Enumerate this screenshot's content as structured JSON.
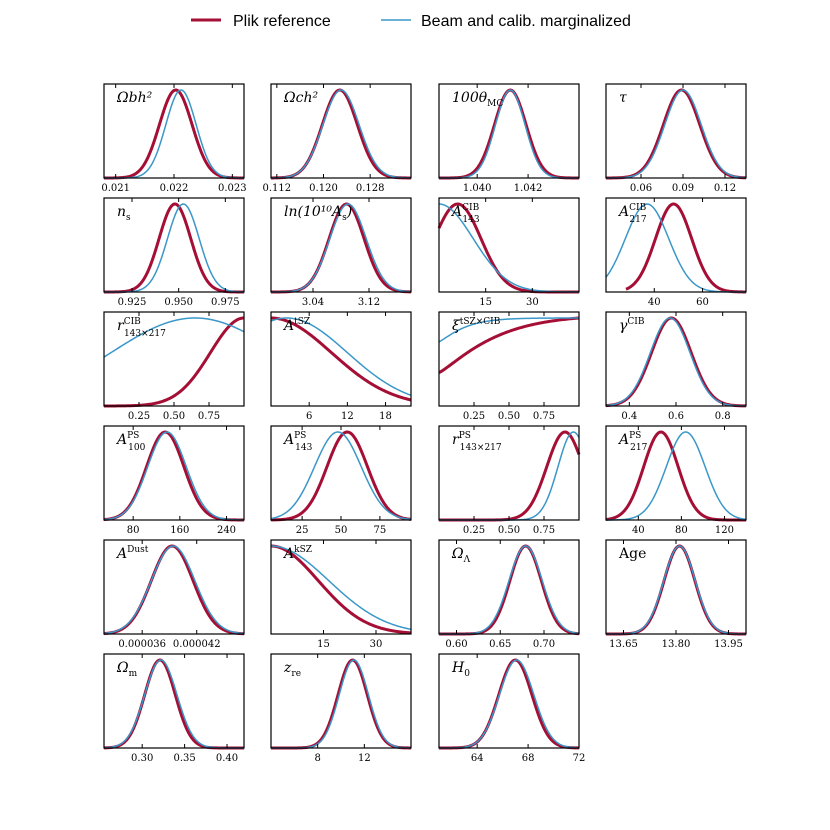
{
  "legend": {
    "items": [
      {
        "label": "Plik reference",
        "color": "#a50f35"
      },
      {
        "label": "Beam and calib. marginalized",
        "color": "#3a97c9"
      }
    ]
  },
  "chart_data": {
    "type": "line",
    "grid": false,
    "legend_position": "top-center",
    "series_names": [
      "Plik reference",
      "Beam and calib. marginalized"
    ],
    "panels": [
      {
        "id": "omegab",
        "label": {
          "main": "Ωbh²",
          "sub": "",
          "sup": ""
        },
        "xlim": [
          0.0208,
          0.0232
        ],
        "ticks": [
          "0.021",
          "0.022",
          "0.023"
        ],
        "tick_values": [
          0.021,
          0.022,
          0.023
        ],
        "curves": [
          {
            "type": "gauss",
            "mu": 0.02203,
            "sigma": 0.00028
          },
          {
            "type": "gauss",
            "mu": 0.02212,
            "sigma": 0.00026
          }
        ]
      },
      {
        "id": "omegac",
        "label": {
          "main": "Ωch²",
          "sub": "",
          "sup": ""
        },
        "xlim": [
          0.111,
          0.135
        ],
        "ticks": [
          "0.112",
          "0.120",
          "0.128"
        ],
        "tick_values": [
          0.112,
          0.12,
          0.128
        ],
        "curves": [
          {
            "type": "gauss",
            "mu": 0.1228,
            "sigma": 0.003
          },
          {
            "type": "gauss",
            "mu": 0.123,
            "sigma": 0.0031
          }
        ]
      },
      {
        "id": "theta",
        "label": {
          "main": "100θ",
          "sub": "MC",
          "sup": ""
        },
        "xlim": [
          1.0385,
          1.044
        ],
        "ticks": [
          "1.040",
          "1.042"
        ],
        "tick_values": [
          1.04,
          1.042
        ],
        "curves": [
          {
            "type": "gauss",
            "mu": 1.0413,
            "sigma": 0.00062
          },
          {
            "type": "gauss",
            "mu": 1.0413,
            "sigma": 0.00058
          }
        ]
      },
      {
        "id": "tau",
        "label": {
          "main": "τ",
          "sub": "",
          "sup": ""
        },
        "xlim": [
          0.035,
          0.135
        ],
        "ticks": [
          "0.06",
          "0.09",
          "0.12"
        ],
        "tick_values": [
          0.06,
          0.09,
          0.12
        ],
        "curves": [
          {
            "type": "gauss",
            "mu": 0.089,
            "sigma": 0.013
          },
          {
            "type": "gauss",
            "mu": 0.09,
            "sigma": 0.013
          }
        ]
      },
      {
        "id": "ns",
        "label": {
          "main": "n",
          "sub": "s",
          "sup": ""
        },
        "xlim": [
          0.91,
          0.985
        ],
        "ticks": [
          "0.925",
          "0.950",
          "0.975"
        ],
        "tick_values": [
          0.925,
          0.95,
          0.975
        ],
        "curves": [
          {
            "type": "gauss",
            "mu": 0.948,
            "sigma": 0.0085
          },
          {
            "type": "gauss",
            "mu": 0.9525,
            "sigma": 0.0085
          }
        ]
      },
      {
        "id": "logA",
        "label": {
          "main": "ln(10¹⁰A",
          "sub": "s",
          "sup": "",
          "tail": ")"
        },
        "xlim": [
          2.98,
          3.18
        ],
        "ticks": [
          "3.04",
          "3.12"
        ],
        "tick_values": [
          3.04,
          3.12
        ],
        "curves": [
          {
            "type": "gauss",
            "mu": 3.088,
            "sigma": 0.025
          },
          {
            "type": "gauss",
            "mu": 3.09,
            "sigma": 0.026
          }
        ]
      },
      {
        "id": "acib143",
        "label": {
          "main": "A",
          "sub": "143",
          "sup": "CIB"
        },
        "xlim": [
          0,
          45
        ],
        "ticks": [
          "15",
          "30"
        ],
        "tick_values": [
          15,
          30
        ],
        "curves": [
          {
            "type": "gauss",
            "mu": 6,
            "sigma": 7.5,
            "clip": 0
          },
          {
            "type": "decay",
            "peak": 0,
            "scale": 11
          }
        ]
      },
      {
        "id": "acib217",
        "label": {
          "main": "A",
          "sub": "217",
          "sup": "CIB"
        },
        "xlim": [
          20,
          78
        ],
        "ticks": [
          "40",
          "60"
        ],
        "tick_values": [
          40,
          60
        ],
        "curves": [
          {
            "type": "gauss",
            "mu": 48,
            "sigma": 7.5,
            "clipmin": 28
          },
          {
            "type": "gauss",
            "mu": 37,
            "sigma": 9
          }
        ]
      },
      {
        "id": "rcib",
        "label": {
          "main": "r",
          "sub": "143×217",
          "sup": "CIB"
        },
        "xlim": [
          0.0,
          1.0
        ],
        "ticks": [
          "0.25",
          "0.50",
          "0.75"
        ],
        "tick_values": [
          0.25,
          0.5,
          0.75
        ],
        "curves": [
          {
            "type": "gauss",
            "mu": 1.0,
            "sigma": 0.24
          },
          {
            "type": "skew",
            "mu": 0.65,
            "sl": 0.6,
            "sr": 0.6
          }
        ]
      },
      {
        "id": "atsz",
        "label": {
          "main": "A",
          "sub": "",
          "sup": "tSZ"
        },
        "xlim": [
          0,
          22
        ],
        "ticks": [
          "6",
          "12",
          "18"
        ],
        "tick_values": [
          6,
          12,
          18
        ],
        "curves": [
          {
            "type": "gauss",
            "mu": 0,
            "sigma": 9.5
          },
          {
            "type": "gauss",
            "mu": 2.5,
            "sigma": 9.5
          }
        ]
      },
      {
        "id": "xi",
        "label": {
          "main": "ξ",
          "sub": "",
          "sup": "tSZ×CIB"
        },
        "xlim": [
          0.0,
          1.0
        ],
        "ticks": [
          "0.25",
          "0.50",
          "0.75"
        ],
        "tick_values": [
          0.25,
          0.5,
          0.75
        ],
        "curves": [
          {
            "type": "rise",
            "a": 0.38,
            "b": 0.35
          },
          {
            "type": "rise",
            "a": 0.73,
            "b": 0.14
          }
        ]
      },
      {
        "id": "gammacib",
        "label": {
          "main": "γ",
          "sub": "",
          "sup": "CIB"
        },
        "xlim": [
          0.3,
          0.9
        ],
        "ticks": [
          "0.4",
          "0.6",
          "0.8"
        ],
        "tick_values": [
          0.4,
          0.6,
          0.8
        ],
        "curves": [
          {
            "type": "gauss",
            "mu": 0.58,
            "sigma": 0.085
          },
          {
            "type": "gauss",
            "mu": 0.575,
            "sigma": 0.085
          }
        ]
      },
      {
        "id": "aps100",
        "label": {
          "main": "A",
          "sub": "100",
          "sup": "PS"
        },
        "xlim": [
          30,
          270
        ],
        "ticks": [
          "80",
          "160",
          "240"
        ],
        "tick_values": [
          80,
          160,
          240
        ],
        "curves": [
          {
            "type": "gauss",
            "mu": 135,
            "sigma": 32
          },
          {
            "type": "gauss",
            "mu": 138,
            "sigma": 33
          }
        ]
      },
      {
        "id": "aps143",
        "label": {
          "main": "A",
          "sub": "143",
          "sup": "PS"
        },
        "xlim": [
          5,
          95
        ],
        "ticks": [
          "25",
          "50",
          "75"
        ],
        "tick_values": [
          25,
          50,
          75
        ],
        "curves": [
          {
            "type": "gauss",
            "mu": 54,
            "sigma": 13
          },
          {
            "type": "gauss",
            "mu": 48,
            "sigma": 15
          }
        ]
      },
      {
        "id": "rps",
        "label": {
          "main": "r",
          "sub": "143×217",
          "sup": "PS"
        },
        "xlim": [
          0.0,
          1.0
        ],
        "ticks": [
          "0.25",
          "0.50",
          "0.75"
        ],
        "tick_values": [
          0.25,
          0.5,
          0.75
        ],
        "curves": [
          {
            "type": "gauss",
            "mu": 0.9,
            "sigma": 0.13
          },
          {
            "type": "gauss",
            "mu": 0.96,
            "sigma": 0.11
          }
        ]
      },
      {
        "id": "aps217",
        "label": {
          "main": "A",
          "sub": "217",
          "sup": "PS"
        },
        "xlim": [
          10,
          140
        ],
        "ticks": [
          "40",
          "80",
          "120"
        ],
        "tick_values": [
          40,
          80,
          120
        ],
        "curves": [
          {
            "type": "gauss",
            "mu": 61,
            "sigma": 16
          },
          {
            "type": "gauss",
            "mu": 84,
            "sigma": 18
          }
        ]
      },
      {
        "id": "adust",
        "label": {
          "main": "A",
          "sub": "",
          "sup": "Dust"
        },
        "xlim": [
          3.18e-05,
          4.72e-05
        ],
        "ticks": [
          "0.000036",
          "0.000042"
        ],
        "tick_values": [
          3.6e-05,
          4.2e-05
        ],
        "curves": [
          {
            "type": "gauss",
            "mu": 3.93e-05,
            "sigma": 2.3e-06
          },
          {
            "type": "gauss",
            "mu": 3.94e-05,
            "sigma": 2.4e-06
          }
        ]
      },
      {
        "id": "aksz",
        "label": {
          "main": "A",
          "sub": "",
          "sup": "kSZ"
        },
        "xlim": [
          0,
          40
        ],
        "ticks": [
          "15",
          "30"
        ],
        "tick_values": [
          15,
          30
        ],
        "curves": [
          {
            "type": "gauss",
            "mu": 0,
            "sigma": 13.5
          },
          {
            "type": "gauss",
            "mu": 0,
            "sigma": 16.5
          }
        ]
      },
      {
        "id": "omegal",
        "label": {
          "main": "Ω",
          "sub": "Λ",
          "sup": ""
        },
        "xlim": [
          0.58,
          0.74
        ],
        "ticks": [
          "0.60",
          "0.65",
          "0.70"
        ],
        "tick_values": [
          0.6,
          0.65,
          0.7
        ],
        "curves": [
          {
            "type": "gauss",
            "mu": 0.679,
            "sigma": 0.018
          },
          {
            "type": "gauss",
            "mu": 0.679,
            "sigma": 0.019
          }
        ]
      },
      {
        "id": "age",
        "label": {
          "main": "Age",
          "sub": "",
          "sup": "",
          "upright": true
        },
        "xlim": [
          13.6,
          14.0
        ],
        "ticks": [
          "13.65",
          "13.80",
          "13.95"
        ],
        "tick_values": [
          13.65,
          13.8,
          13.95
        ],
        "curves": [
          {
            "type": "gauss",
            "mu": 13.81,
            "sigma": 0.044
          },
          {
            "type": "gauss",
            "mu": 13.81,
            "sigma": 0.045
          }
        ]
      },
      {
        "id": "omegam",
        "label": {
          "main": "Ω",
          "sub": "m",
          "sup": ""
        },
        "xlim": [
          0.255,
          0.42
        ],
        "ticks": [
          "0.30",
          "0.35",
          "0.40"
        ],
        "tick_values": [
          0.3,
          0.35,
          0.4
        ],
        "curves": [
          {
            "type": "gauss",
            "mu": 0.321,
            "sigma": 0.018
          },
          {
            "type": "gauss",
            "mu": 0.322,
            "sigma": 0.019
          }
        ]
      },
      {
        "id": "zre",
        "label": {
          "main": "z",
          "sub": "re",
          "sup": ""
        },
        "xlim": [
          4,
          16
        ],
        "ticks": [
          "8",
          "12"
        ],
        "tick_values": [
          8,
          12
        ],
        "curves": [
          {
            "type": "gauss",
            "mu": 11.0,
            "sigma": 1.25
          },
          {
            "type": "gauss",
            "mu": 11.1,
            "sigma": 1.25
          }
        ]
      },
      {
        "id": "h0",
        "label": {
          "main": "H",
          "sub": "0",
          "sup": ""
        },
        "xlim": [
          61.0,
          72.0
        ],
        "ticks": [
          "64",
          "68",
          "72"
        ],
        "tick_values": [
          64,
          68,
          72
        ],
        "curves": [
          {
            "type": "gauss",
            "mu": 67.0,
            "sigma": 1.3
          },
          {
            "type": "gauss",
            "mu": 67.1,
            "sigma": 1.35
          }
        ]
      }
    ]
  }
}
